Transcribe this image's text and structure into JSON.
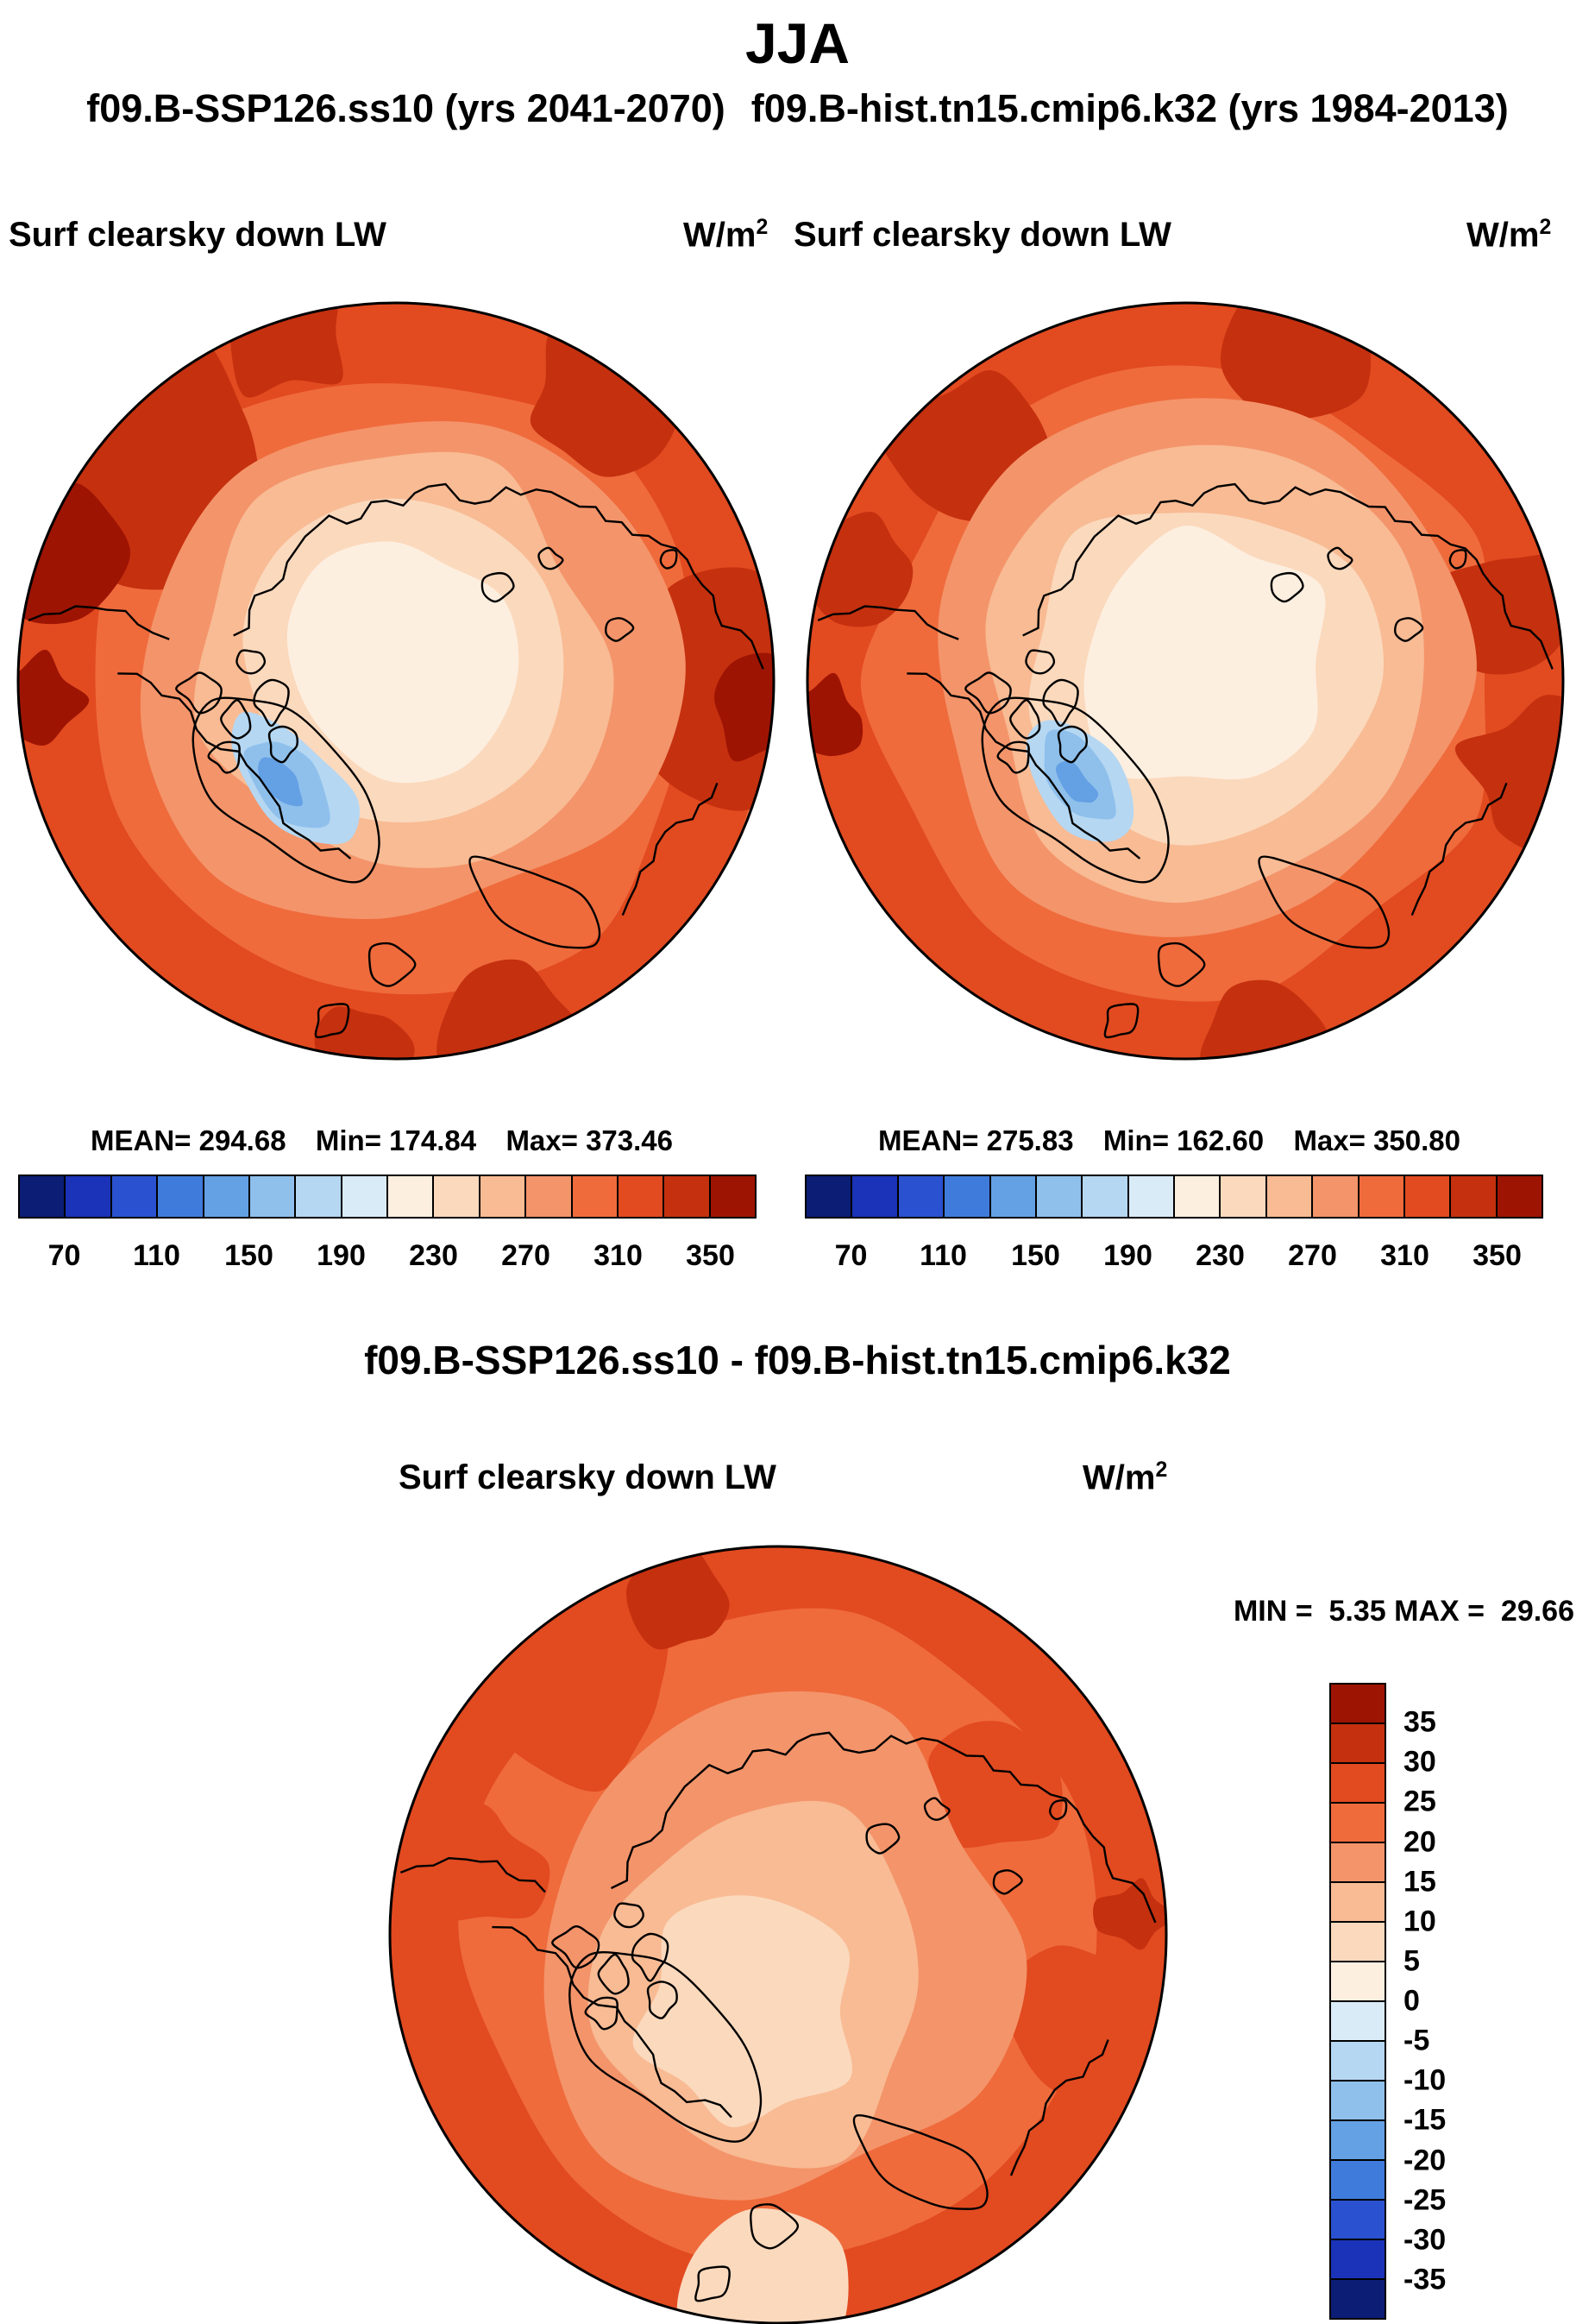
{
  "title": "JJA",
  "subtitle": {
    "left": "f09.B-SSP126.ss10 (yrs 2041-2070)",
    "right": "f09.B-hist.tn15.cmip6.k32 (yrs 1984-2013)"
  },
  "diff_title": "f09.B-SSP126.ss10 - f09.B-hist.tn15.cmip6.k32",
  "panels": {
    "left": {
      "label": "Surf clearsky down LW",
      "units_base": "W/m",
      "units_exp": "2",
      "stats": {
        "mean_label": "MEAN=",
        "mean": "294.68",
        "min_label": "Min=",
        "min": "174.84",
        "max_label": "Max=",
        "max": "373.46"
      }
    },
    "right": {
      "label": "Surf clearsky down LW",
      "units_base": "W/m",
      "units_exp": "2",
      "stats": {
        "mean_label": "MEAN=",
        "mean": "275.83",
        "min_label": "Min=",
        "min": "162.60",
        "max_label": "Max=",
        "max": "350.80"
      }
    },
    "diff": {
      "label": "Surf clearsky down LW",
      "units_base": "W/m",
      "units_exp": "2",
      "stats": {
        "min_label": "MIN =",
        "min": "5.35",
        "max_label": "MAX =",
        "max": "29.66"
      }
    }
  },
  "colorbar_h": {
    "colors": [
      "#0B1D75",
      "#1A33B8",
      "#2A52D0",
      "#3F7BDB",
      "#64A0E4",
      "#8FC0EC",
      "#B5D7F2",
      "#DAEBF8",
      "#FDEFE0",
      "#FBD9BD",
      "#F8BB94",
      "#F4946A",
      "#EF6B3C",
      "#E24A20",
      "#C5300F",
      "#9E1403"
    ],
    "ticks": [
      "70",
      "110",
      "150",
      "190",
      "230",
      "270",
      "310",
      "350"
    ]
  },
  "colorbar_v": {
    "colors": [
      "#9E1403",
      "#C5300F",
      "#E24A20",
      "#EF6B3C",
      "#F4946A",
      "#F8BB94",
      "#FBD9BD",
      "#FDEFE0",
      "#DAEBF8",
      "#B5D7F2",
      "#8FC0EC",
      "#64A0E4",
      "#3F7BDB",
      "#2A52D0",
      "#1A33B8",
      "#0B1D75"
    ],
    "labels": [
      "35",
      "30",
      "25",
      "20",
      "15",
      "10",
      "5",
      "0",
      "-5",
      "-10",
      "-15",
      "-20",
      "-25",
      "-30",
      "-35"
    ]
  },
  "chart_data": {
    "type": "heatmap",
    "season": "JJA",
    "projection": "north polar stereographic",
    "variable": "Surf clearsky down LW",
    "units": "W/m2",
    "panels": [
      {
        "run": "f09.B-SSP126.ss10",
        "years": "2041-2070",
        "mean": 294.68,
        "min": 174.84,
        "max": 373.46,
        "contour_interval": 20,
        "tick_values": [
          70,
          110,
          150,
          190,
          230,
          270,
          310,
          350
        ],
        "legend_position": "bottom"
      },
      {
        "run": "f09.B-hist.tn15.cmip6.k32",
        "years": "1984-2013",
        "mean": 275.83,
        "min": 162.6,
        "max": 350.8,
        "contour_interval": 20,
        "tick_values": [
          70,
          110,
          150,
          190,
          230,
          270,
          310,
          350
        ],
        "legend_position": "bottom"
      },
      {
        "run": "f09.B-SSP126.ss10 - f09.B-hist.tn15.cmip6.k32",
        "kind": "difference",
        "min": 5.35,
        "max": 29.66,
        "contour_interval": 5,
        "tick_values": [
          35,
          30,
          25,
          20,
          15,
          10,
          5,
          0,
          -5,
          -10,
          -15,
          -20,
          -25,
          -30,
          -35
        ],
        "legend_position": "right"
      }
    ]
  }
}
